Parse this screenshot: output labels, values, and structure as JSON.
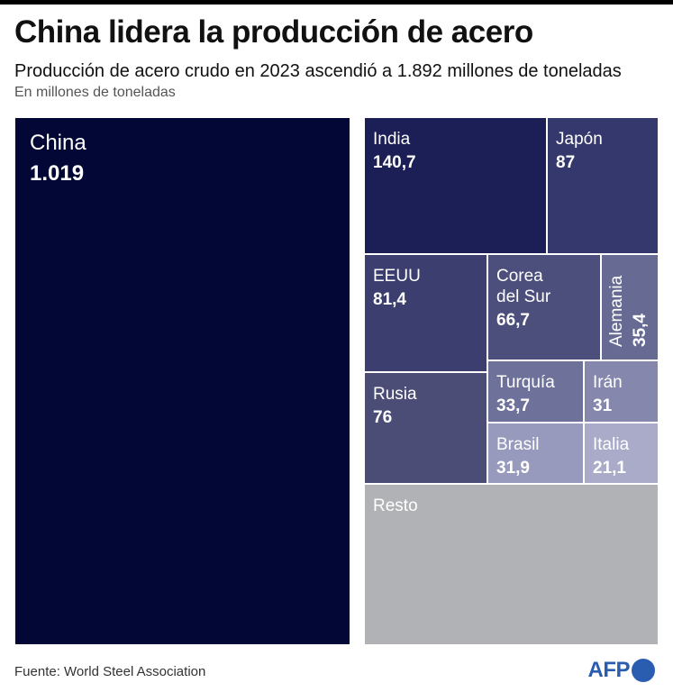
{
  "header": {
    "title": "China lidera la producción de acero",
    "subtitle": "Producción de acero crudo en 2023 ascendió a 1.892 millones de toneladas",
    "unit": "En millones de toneladas"
  },
  "chart_data": {
    "type": "treemap",
    "total": 1892,
    "cells": [
      {
        "label": "China",
        "display_value": "1.019",
        "value": 1019,
        "color": "#030735",
        "text_color": "#ffffff"
      },
      {
        "label": "India",
        "display_value": "140,7",
        "value": 140.7,
        "color": "#1c1f55",
        "text_color": "#ffffff"
      },
      {
        "label": "Japón",
        "display_value": "87",
        "value": 87,
        "color": "#34386c",
        "text_color": "#ffffff"
      },
      {
        "label": "EEUU",
        "display_value": "81,4",
        "value": 81.4,
        "color": "#3b3e6f",
        "text_color": "#ffffff"
      },
      {
        "label": "Corea\ndel Sur",
        "display_value": "66,7",
        "value": 66.7,
        "color": "#4c4f7c",
        "text_color": "#ffffff"
      },
      {
        "label": "Alemania",
        "display_value": "35,4",
        "value": 35.4,
        "color": "#676a93",
        "text_color": "#ffffff",
        "vertical": true
      },
      {
        "label": "Rusia",
        "display_value": "76",
        "value": 76,
        "color": "#4b4d77",
        "text_color": "#ffffff"
      },
      {
        "label": "Turquía",
        "display_value": "33,7",
        "value": 33.7,
        "color": "#6e719a",
        "text_color": "#ffffff"
      },
      {
        "label": "Irán",
        "display_value": "31",
        "value": 31,
        "color": "#8587ad",
        "text_color": "#ffffff"
      },
      {
        "label": "Brasil",
        "display_value": "31,9",
        "value": 31.9,
        "color": "#9799bd",
        "text_color": "#ffffff"
      },
      {
        "label": "Italia",
        "display_value": "21,1",
        "value": 21.1,
        "color": "#a9abc9",
        "text_color": "#ffffff"
      },
      {
        "label": "Resto",
        "display_value": "",
        "color": "#b1b2b6",
        "text_color": "#ffffff"
      }
    ]
  },
  "footer": {
    "source": "Fuente: World Steel Association",
    "logo_text": "AFP",
    "logo_color": "#2a5db0"
  }
}
